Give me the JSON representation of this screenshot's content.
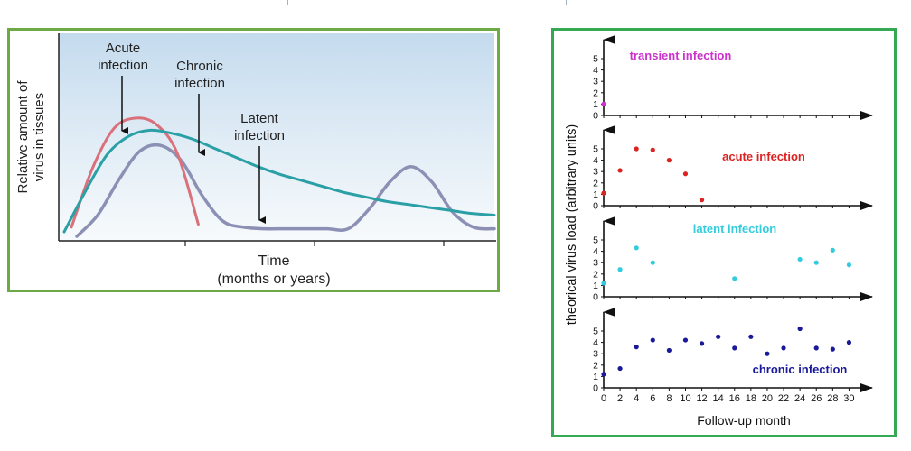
{
  "chart_data": [
    {
      "type": "line",
      "title": "",
      "xlabel_line1": "Time",
      "xlabel_line2": "(months or years)",
      "ylabel_line1": "Relative amount of",
      "ylabel_line2": "virus in tissues",
      "ylim": [
        0,
        1
      ],
      "x": [
        0,
        0.05,
        0.1,
        0.15,
        0.2,
        0.25,
        0.3,
        0.35,
        0.4,
        0.45,
        0.5,
        0.55,
        0.6,
        0.65,
        0.7,
        0.75,
        0.8,
        0.85,
        0.9,
        0.95,
        1.0
      ],
      "series": [
        {
          "name": "Acute infection",
          "label_line1": "Acute",
          "label_line2": "infection",
          "color": "#d9707a",
          "values": [
            0.06,
            0.45,
            0.71,
            0.78,
            0.74,
            0.55,
            0.08,
            null,
            null,
            null,
            null,
            null,
            null,
            null,
            null,
            null,
            null,
            null,
            null,
            null,
            null
          ]
        },
        {
          "name": "Chronic infection",
          "label_line1": "Chronic",
          "label_line2": "infection",
          "color": "#2a9fa6",
          "values": [
            0.03,
            0.3,
            0.54,
            0.66,
            0.7,
            0.68,
            0.64,
            0.58,
            0.52,
            0.46,
            0.41,
            0.37,
            0.33,
            0.29,
            0.26,
            0.23,
            0.21,
            0.19,
            0.17,
            0.15,
            0.14
          ]
        },
        {
          "name": "Latent infection",
          "label_line1": "Latent",
          "label_line2": "infection",
          "color": "#8c90b4",
          "values": [
            0.0,
            0.14,
            0.37,
            0.56,
            0.6,
            0.5,
            0.27,
            0.1,
            0.06,
            0.05,
            0.05,
            0.05,
            0.05,
            0.05,
            0.18,
            0.36,
            0.46,
            0.36,
            0.16,
            0.06,
            0.05
          ]
        }
      ]
    },
    {
      "type": "scatter",
      "title": "",
      "xlabel": "Follow-up month",
      "ylabel": "theorical virus load (arbitrary units)",
      "xticks": [
        0,
        2,
        4,
        6,
        8,
        10,
        12,
        14,
        16,
        18,
        20,
        22,
        24,
        26,
        28,
        30
      ],
      "yticks": [
        0,
        1,
        2,
        3,
        4,
        5
      ],
      "ylim": [
        0,
        5.5
      ],
      "xlim": [
        0,
        31.5
      ],
      "panels": [
        {
          "name": "transient infection",
          "color": "#cc33cc",
          "points": [
            [
              0,
              1
            ]
          ]
        },
        {
          "name": "acute infection",
          "color": "#dd2222",
          "points": [
            [
              0,
              1.1
            ],
            [
              2,
              3.1
            ],
            [
              4,
              5.0
            ],
            [
              6,
              4.9
            ],
            [
              8,
              4.0
            ],
            [
              10,
              2.8
            ],
            [
              12,
              0.5
            ]
          ]
        },
        {
          "name": "latent infection",
          "color": "#33ccdd",
          "points": [
            [
              0,
              1.2
            ],
            [
              2,
              2.4
            ],
            [
              4,
              4.3
            ],
            [
              6,
              3.0
            ],
            [
              16,
              1.6
            ],
            [
              24,
              3.3
            ],
            [
              26,
              3.0
            ],
            [
              28,
              4.1
            ],
            [
              30,
              2.8
            ]
          ]
        },
        {
          "name": "chronic infection",
          "color": "#1a1a99",
          "points": [
            [
              0,
              1.2
            ],
            [
              2,
              1.7
            ],
            [
              4,
              3.6
            ],
            [
              6,
              4.2
            ],
            [
              8,
              3.3
            ],
            [
              10,
              4.2
            ],
            [
              12,
              3.9
            ],
            [
              14,
              4.5
            ],
            [
              16,
              3.5
            ],
            [
              18,
              4.5
            ],
            [
              20,
              3.0
            ],
            [
              22,
              3.5
            ],
            [
              24,
              5.2
            ],
            [
              26,
              3.5
            ],
            [
              28,
              3.4
            ],
            [
              30,
              4.0
            ]
          ]
        }
      ]
    }
  ]
}
